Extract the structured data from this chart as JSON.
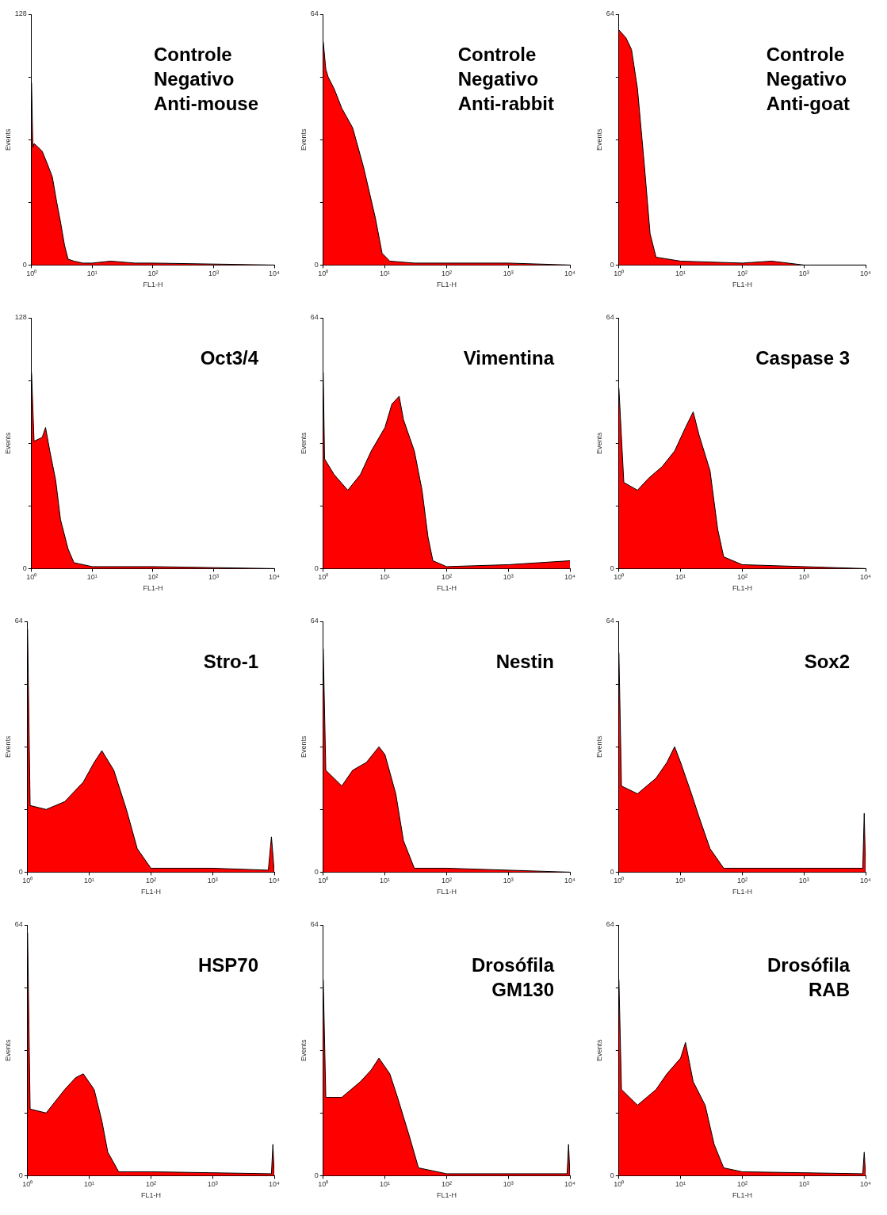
{
  "chart_data": [
    {
      "type": "area",
      "title": "Controle\nNegativo\nAnti-mouse",
      "xlabel": "FL1-H",
      "ylabel": "Events",
      "log": "x",
      "grid": false,
      "color": "#ff0000",
      "xlim": [
        1,
        10000
      ],
      "ylim": [
        0,
        128
      ],
      "xticks": [
        {
          "value": 1,
          "label": "10⁰"
        },
        {
          "value": 10,
          "label": "10¹"
        },
        {
          "value": 100,
          "label": "10²"
        },
        {
          "value": 1000,
          "label": "10³"
        },
        {
          "value": 10000,
          "label": "10⁴"
        }
      ],
      "yticks": [
        0,
        {
          "value": 32,
          "label": null
        },
        {
          "value": 64,
          "label": null
        },
        {
          "value": 96,
          "label": null
        },
        128
      ],
      "x": [
        1,
        1.05,
        1.1,
        1.3,
        1.5,
        1.8,
        2.2,
        2.6,
        3,
        3.5,
        4,
        5,
        7,
        10,
        20,
        50,
        100,
        1000,
        10000
      ],
      "values": [
        93,
        60,
        62,
        60,
        58,
        52,
        45,
        32,
        22,
        10,
        3,
        2,
        1,
        1,
        2,
        1,
        1,
        0.5,
        0
      ]
    },
    {
      "type": "area",
      "title": "Controle\nNegativo\nAnti-rabbit",
      "xlabel": "FL1-H",
      "ylabel": "Events",
      "log": "x",
      "grid": false,
      "color": "#ff0000",
      "xlim": [
        1,
        10000
      ],
      "ylim": [
        0,
        64
      ],
      "xticks": [
        {
          "value": 1,
          "label": "10⁰"
        },
        {
          "value": 10,
          "label": "10¹"
        },
        {
          "value": 100,
          "label": "10²"
        },
        {
          "value": 1000,
          "label": "10³"
        },
        {
          "value": 10000,
          "label": "10⁴"
        }
      ],
      "yticks": [
        0,
        {
          "value": 16,
          "label": null
        },
        {
          "value": 32,
          "label": null
        },
        {
          "value": 48,
          "label": null
        },
        64
      ],
      "x": [
        1,
        1.1,
        1.2,
        1.5,
        2,
        3,
        4.5,
        7,
        9,
        12,
        30,
        100,
        1000,
        10000
      ],
      "values": [
        57,
        50,
        48,
        45,
        40,
        35,
        25,
        12,
        3,
        1,
        0.5,
        0.5,
        0.5,
        0
      ]
    },
    {
      "type": "area",
      "title": "Controle\nNegativo\nAnti-goat",
      "xlabel": "FL1-H",
      "ylabel": "Events",
      "log": "x",
      "grid": false,
      "color": "#ff0000",
      "xlim": [
        1,
        10000
      ],
      "ylim": [
        0,
        64
      ],
      "xticks": [
        {
          "value": 1,
          "label": "10⁰"
        },
        {
          "value": 10,
          "label": "10¹"
        },
        {
          "value": 100,
          "label": "10²"
        },
        {
          "value": 1000,
          "label": "10³"
        },
        {
          "value": 10000,
          "label": "10⁴"
        }
      ],
      "yticks": [
        0,
        {
          "value": 16,
          "label": null
        },
        {
          "value": 32,
          "label": null
        },
        {
          "value": 48,
          "label": null
        },
        64
      ],
      "x": [
        1,
        1.3,
        1.6,
        2,
        2.6,
        3.2,
        4,
        10,
        100,
        300,
        1000,
        10000
      ],
      "values": [
        60,
        58,
        55,
        45,
        25,
        8,
        2,
        1,
        0.5,
        1,
        0,
        0
      ]
    },
    {
      "type": "area",
      "title": "Oct3/4",
      "xlabel": "FL1-H",
      "ylabel": "Events",
      "log": "x",
      "grid": false,
      "color": "#ff0000",
      "xlim": [
        1,
        10000
      ],
      "ylim": [
        0,
        128
      ],
      "xticks": [
        {
          "value": 1,
          "label": "10⁰"
        },
        {
          "value": 10,
          "label": "10¹"
        },
        {
          "value": 100,
          "label": "10²"
        },
        {
          "value": 1000,
          "label": "10³"
        },
        {
          "value": 10000,
          "label": "10⁴"
        }
      ],
      "yticks": [
        0,
        {
          "value": 32,
          "label": null
        },
        {
          "value": 64,
          "label": null
        },
        {
          "value": 96,
          "label": null
        },
        128
      ],
      "x": [
        1,
        1.1,
        1.5,
        1.7,
        2,
        2.5,
        3,
        4,
        5,
        10,
        100,
        1000,
        10000
      ],
      "values": [
        100,
        65,
        67,
        72,
        60,
        45,
        25,
        10,
        3,
        1,
        1,
        0.5,
        0
      ]
    },
    {
      "type": "area",
      "title": "Vimentina",
      "xlabel": "FL1-H",
      "ylabel": "Events",
      "log": "x",
      "grid": false,
      "color": "#ff0000",
      "xlim": [
        1,
        10000
      ],
      "ylim": [
        0,
        64
      ],
      "xticks": [
        {
          "value": 1,
          "label": "10⁰"
        },
        {
          "value": 10,
          "label": "10¹"
        },
        {
          "value": 100,
          "label": "10²"
        },
        {
          "value": 1000,
          "label": "10³"
        },
        {
          "value": 10000,
          "label": "10⁴"
        }
      ],
      "yticks": [
        0,
        {
          "value": 16,
          "label": null
        },
        {
          "value": 32,
          "label": null
        },
        {
          "value": 48,
          "label": null
        },
        64
      ],
      "x": [
        1,
        1.05,
        1.5,
        2.5,
        4,
        6,
        10,
        13,
        17,
        20,
        30,
        40,
        50,
        60,
        100,
        1000,
        10000
      ],
      "values": [
        50,
        28,
        24,
        20,
        24,
        30,
        36,
        42,
        44,
        38,
        30,
        20,
        8,
        2,
        0.5,
        1,
        2
      ]
    },
    {
      "type": "area",
      "title": "Caspase 3",
      "xlabel": "FL1-H",
      "ylabel": "Events",
      "log": "x",
      "grid": false,
      "color": "#ff0000",
      "xlim": [
        1,
        10000
      ],
      "ylim": [
        0,
        64
      ],
      "xticks": [
        {
          "value": 1,
          "label": "10⁰"
        },
        {
          "value": 10,
          "label": "10¹"
        },
        {
          "value": 100,
          "label": "10²"
        },
        {
          "value": 1000,
          "label": "10³"
        },
        {
          "value": 10000,
          "label": "10⁴"
        }
      ],
      "yticks": [
        0,
        {
          "value": 16,
          "label": null
        },
        {
          "value": 32,
          "label": null
        },
        {
          "value": 48,
          "label": null
        },
        64
      ],
      "x": [
        1,
        1.2,
        2,
        3,
        5,
        8,
        12,
        16,
        20,
        30,
        40,
        50,
        100,
        1000,
        10000
      ],
      "values": [
        46,
        22,
        20,
        23,
        26,
        30,
        36,
        40,
        34,
        25,
        10,
        3,
        1,
        0.5,
        0
      ]
    },
    {
      "type": "area",
      "title": "Stro-1",
      "xlabel": "FL1-H",
      "ylabel": "Events",
      "log": "x",
      "grid": false,
      "color": "#ff0000",
      "xlim": [
        1,
        10000
      ],
      "ylim": [
        0,
        64
      ],
      "xticks": [
        {
          "value": 1,
          "label": "10⁰"
        },
        {
          "value": 10,
          "label": "10¹"
        },
        {
          "value": 100,
          "label": "10²"
        },
        {
          "value": 1000,
          "label": "10³"
        },
        {
          "value": 10000,
          "label": "10⁴"
        }
      ],
      "yticks": [
        0,
        {
          "value": 16,
          "label": null
        },
        {
          "value": 32,
          "label": null
        },
        {
          "value": 48,
          "label": null
        },
        64
      ],
      "x": [
        1,
        1.1,
        2,
        4,
        8,
        12,
        16,
        25,
        40,
        60,
        100,
        1000,
        8000,
        9000,
        10000
      ],
      "values": [
        62,
        17,
        16,
        18,
        23,
        28,
        31,
        26,
        16,
        6,
        1,
        1,
        0.5,
        9,
        0
      ]
    },
    {
      "type": "area",
      "title": "Nestin",
      "xlabel": "FL1-H",
      "ylabel": "Events",
      "log": "x",
      "grid": false,
      "color": "#ff0000",
      "xlim": [
        1,
        10000
      ],
      "ylim": [
        0,
        64
      ],
      "xticks": [
        {
          "value": 1,
          "label": "10⁰"
        },
        {
          "value": 10,
          "label": "10¹"
        },
        {
          "value": 100,
          "label": "10²"
        },
        {
          "value": 1000,
          "label": "10³"
        },
        {
          "value": 10000,
          "label": "10⁴"
        }
      ],
      "yticks": [
        0,
        {
          "value": 16,
          "label": null
        },
        {
          "value": 32,
          "label": null
        },
        {
          "value": 48,
          "label": null
        },
        64
      ],
      "x": [
        1,
        1.1,
        2,
        3,
        5,
        8,
        10,
        15,
        20,
        30,
        100,
        1000,
        10000
      ],
      "values": [
        57,
        26,
        22,
        26,
        28,
        32,
        30,
        20,
        8,
        1,
        1,
        0.5,
        0
      ]
    },
    {
      "type": "area",
      "title": "Sox2",
      "xlabel": "FL1-H",
      "ylabel": "Events",
      "log": "x",
      "grid": false,
      "color": "#ff0000",
      "xlim": [
        1,
        10000
      ],
      "ylim": [
        0,
        64
      ],
      "xticks": [
        {
          "value": 1,
          "label": "10⁰"
        },
        {
          "value": 10,
          "label": "10¹"
        },
        {
          "value": 100,
          "label": "10²"
        },
        {
          "value": 1000,
          "label": "10³"
        },
        {
          "value": 10000,
          "label": "10⁴"
        }
      ],
      "yticks": [
        0,
        {
          "value": 16,
          "label": null
        },
        {
          "value": 32,
          "label": null
        },
        {
          "value": 48,
          "label": null
        },
        64
      ],
      "x": [
        1,
        1.1,
        2,
        4,
        6,
        8,
        10,
        15,
        20,
        30,
        50,
        1000,
        9000,
        9500,
        10000
      ],
      "values": [
        56,
        22,
        20,
        24,
        28,
        32,
        28,
        20,
        14,
        6,
        1,
        1,
        1,
        15,
        0
      ]
    },
    {
      "type": "area",
      "title": "HSP70",
      "xlabel": "FL1-H",
      "ylabel": "Events",
      "log": "x",
      "grid": false,
      "color": "#ff0000",
      "xlim": [
        1,
        10000
      ],
      "ylim": [
        0,
        64
      ],
      "xticks": [
        {
          "value": 1,
          "label": "10⁰"
        },
        {
          "value": 10,
          "label": "10¹"
        },
        {
          "value": 100,
          "label": "10²"
        },
        {
          "value": 1000,
          "label": "10³"
        },
        {
          "value": 10000,
          "label": "10⁴"
        }
      ],
      "yticks": [
        0,
        {
          "value": 16,
          "label": null
        },
        {
          "value": 32,
          "label": null
        },
        {
          "value": 48,
          "label": null
        },
        64
      ],
      "x": [
        1,
        1.1,
        2,
        4,
        6,
        8,
        12,
        16,
        20,
        30,
        100,
        9000,
        9500,
        10000
      ],
      "values": [
        62,
        17,
        16,
        22,
        25,
        26,
        22,
        14,
        6,
        1,
        1,
        0.5,
        8,
        0
      ]
    },
    {
      "type": "area",
      "title": "Drosófila\nGM130",
      "xlabel": "FL1-H",
      "ylabel": "Events",
      "log": "x",
      "grid": false,
      "color": "#ff0000",
      "xlim": [
        1,
        10000
      ],
      "ylim": [
        0,
        64
      ],
      "xticks": [
        {
          "value": 1,
          "label": "10⁰"
        },
        {
          "value": 10,
          "label": "10¹"
        },
        {
          "value": 100,
          "label": "10²"
        },
        {
          "value": 1000,
          "label": "10³"
        },
        {
          "value": 10000,
          "label": "10⁴"
        }
      ],
      "yticks": [
        0,
        {
          "value": 16,
          "label": null
        },
        {
          "value": 32,
          "label": null
        },
        {
          "value": 48,
          "label": null
        },
        64
      ],
      "x": [
        1,
        1.1,
        2,
        4,
        6,
        8,
        12,
        16,
        25,
        35,
        100,
        9000,
        9500,
        10000
      ],
      "values": [
        50,
        20,
        20,
        24,
        27,
        30,
        26,
        20,
        10,
        2,
        0.5,
        0.5,
        8,
        0
      ]
    },
    {
      "type": "area",
      "title": "Drosófila\nRAB",
      "xlabel": "FL1-H",
      "ylabel": "Events",
      "log": "x",
      "grid": false,
      "color": "#ff0000",
      "xlim": [
        1,
        10000
      ],
      "ylim": [
        0,
        64
      ],
      "xticks": [
        {
          "value": 1,
          "label": "10⁰"
        },
        {
          "value": 10,
          "label": "10¹"
        },
        {
          "value": 100,
          "label": "10²"
        },
        {
          "value": 1000,
          "label": "10³"
        },
        {
          "value": 10000,
          "label": "10⁴"
        }
      ],
      "yticks": [
        0,
        {
          "value": 16,
          "label": null
        },
        {
          "value": 32,
          "label": null
        },
        {
          "value": 48,
          "label": null
        },
        64
      ],
      "x": [
        1,
        1.1,
        2,
        4,
        6,
        10,
        12,
        16,
        25,
        35,
        50,
        100,
        9000,
        9500,
        10000
      ],
      "values": [
        50,
        22,
        18,
        22,
        26,
        30,
        34,
        24,
        18,
        8,
        2,
        1,
        0.5,
        6,
        0
      ]
    }
  ]
}
